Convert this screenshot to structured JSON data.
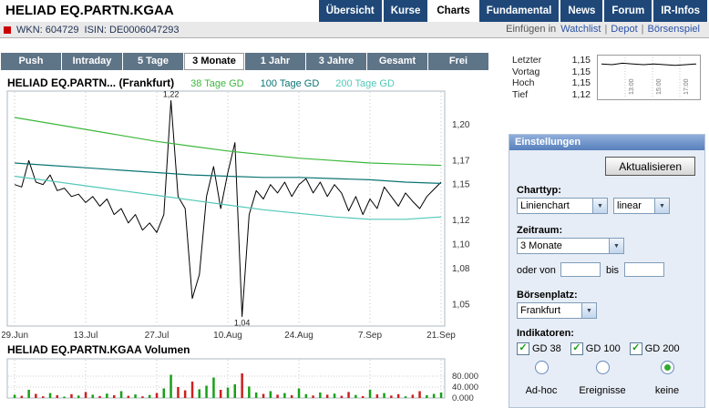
{
  "header": {
    "title": "HELIAD EQ.PARTN.KGAA",
    "tabs": [
      {
        "label": "Übersicht",
        "active": false
      },
      {
        "label": "Kurse",
        "active": false
      },
      {
        "label": "Charts",
        "active": true
      },
      {
        "label": "Fundamental",
        "active": false
      },
      {
        "label": "News",
        "active": false
      },
      {
        "label": "Forum",
        "active": false
      },
      {
        "label": "IR-Infos",
        "active": false
      }
    ]
  },
  "subheader": {
    "wkn_label": "WKN:",
    "wkn_value": "604729",
    "isin_label": "ISIN:",
    "isin_value": "DE0006047293",
    "links_prefix": "Einfügen in",
    "links": [
      "Watchlist",
      "Depot",
      "Börsenspiel"
    ]
  },
  "period_tabs": [
    {
      "label": "Push",
      "active": false
    },
    {
      "label": "Intraday",
      "active": false
    },
    {
      "label": "5 Tage",
      "active": false
    },
    {
      "label": "3 Monate",
      "active": true
    },
    {
      "label": "1 Jahr",
      "active": false
    },
    {
      "label": "3 Jahre",
      "active": false
    },
    {
      "label": "Gesamt",
      "active": false
    },
    {
      "label": "Frei",
      "active": false
    }
  ],
  "quote": {
    "rows": [
      {
        "label": "Letzter",
        "value": "1,15"
      },
      {
        "label": "Vortag",
        "value": "1,15"
      },
      {
        "label": "Hoch",
        "value": "1,15"
      },
      {
        "label": "Tief",
        "value": "1,12"
      }
    ],
    "times": [
      "13:00",
      "15:00",
      "17:00"
    ],
    "spark": [
      1.151,
      1.15,
      1.152,
      1.151,
      1.15,
      1.151,
      1.15,
      1.149,
      1.15,
      1.151
    ]
  },
  "settings": {
    "title": "Einstellungen",
    "refresh_button": "Aktualisieren",
    "charttype_label": "Charttyp:",
    "charttype_value": "Linienchart",
    "scale_value": "linear",
    "zeitraum_label": "Zeitraum:",
    "zeitraum_value": "3 Monate",
    "oder_von_label": "oder von",
    "bis_label": "bis",
    "von_value": "",
    "bis_value": "",
    "boersenplatz_label": "Börsenplatz:",
    "boersenplatz_value": "Frankfurt",
    "indikatoren_label": "Indikatoren:",
    "checkboxes": [
      {
        "label": "GD 38",
        "checked": true
      },
      {
        "label": "GD 100",
        "checked": true
      },
      {
        "label": "GD 200",
        "checked": true
      }
    ],
    "radios": [
      {
        "label": "Ad-hoc",
        "selected": false
      },
      {
        "label": "Ereignisse",
        "selected": false
      },
      {
        "label": "keine",
        "selected": true
      }
    ]
  },
  "chart_data": [
    {
      "type": "line",
      "title": "HELIAD EQ.PARTN... (Frankfurt)",
      "legend": [
        {
          "label": "38 Tage GD",
          "color": "#3cb83c"
        },
        {
          "label": "100 Tage GD",
          "color": "#0b7474"
        },
        {
          "label": "200 Tage GD",
          "color": "#52c8b8"
        }
      ],
      "x_tick_labels": [
        "29.Jun",
        "13.Jul",
        "27.Jul",
        "10.Aug",
        "24.Aug",
        "7.Sep",
        "21.Sep"
      ],
      "x_tick_positions": [
        0,
        10,
        20,
        30,
        40,
        50,
        60
      ],
      "y_ticks": [
        {
          "value": 1.2,
          "label": "1,20"
        },
        {
          "value": 1.17,
          "label": "1,17"
        },
        {
          "value": 1.15,
          "label": "1,15"
        },
        {
          "value": 1.12,
          "label": "1,12"
        },
        {
          "value": 1.1,
          "label": "1,10"
        },
        {
          "value": 1.08,
          "label": "1,08"
        },
        {
          "value": 1.05,
          "label": "1,05"
        }
      ],
      "ylim": [
        1.032,
        1.228
      ],
      "series": [
        {
          "name": "Kurs",
          "color": "#000000",
          "values": [
            1.15,
            1.148,
            1.17,
            1.152,
            1.15,
            1.158,
            1.145,
            1.147,
            1.14,
            1.142,
            1.135,
            1.14,
            1.132,
            1.138,
            1.125,
            1.13,
            1.118,
            1.125,
            1.112,
            1.118,
            1.11,
            1.125,
            1.22,
            1.14,
            1.13,
            1.055,
            1.075,
            1.14,
            1.165,
            1.13,
            1.16,
            1.185,
            1.04,
            1.125,
            1.145,
            1.138,
            1.15,
            1.143,
            1.152,
            1.14,
            1.15,
            1.155,
            1.143,
            1.152,
            1.14,
            1.15,
            1.143,
            1.128,
            1.14,
            1.125,
            1.138,
            1.13,
            1.148,
            1.14,
            1.132,
            1.143,
            1.136,
            1.13,
            1.14,
            1.146,
            1.152
          ]
        },
        {
          "name": "38 Tage GD",
          "color": "#3cb83c",
          "x": [
            0,
            5,
            10,
            15,
            20,
            25,
            30,
            35,
            40,
            45,
            50,
            55,
            60
          ],
          "values": [
            1.206,
            1.201,
            1.196,
            1.191,
            1.186,
            1.182,
            1.178,
            1.175,
            1.172,
            1.17,
            1.168,
            1.167,
            1.166
          ]
        },
        {
          "name": "100 Tage GD",
          "color": "#0b7474",
          "x": [
            0,
            5,
            10,
            15,
            20,
            25,
            30,
            35,
            40,
            45,
            50,
            55,
            60
          ],
          "values": [
            1.168,
            1.166,
            1.164,
            1.162,
            1.16,
            1.158,
            1.157,
            1.156,
            1.156,
            1.155,
            1.154,
            1.152,
            1.151
          ]
        },
        {
          "name": "200 Tage GD",
          "color": "#52c8b8",
          "x": [
            0,
            5,
            10,
            15,
            20,
            25,
            30,
            35,
            40,
            45,
            50,
            55,
            60
          ],
          "values": [
            1.157,
            1.153,
            1.149,
            1.145,
            1.141,
            1.137,
            1.133,
            1.129,
            1.126,
            1.123,
            1.121,
            1.121,
            1.123
          ]
        }
      ],
      "annotations": [
        {
          "x": 22,
          "value": 1.22,
          "label": "1,22",
          "position": "above"
        },
        {
          "x": 32,
          "value": 1.04,
          "label": "1,04",
          "position": "below"
        }
      ]
    },
    {
      "type": "bar",
      "title": "HELIAD EQ.PARTN.KGAA Volumen",
      "y_ticks": [
        {
          "value": 80000,
          "label": "80.000"
        },
        {
          "value": 40000,
          "label": "40.000"
        },
        {
          "value": 0,
          "label": "0.000"
        }
      ],
      "up_color": "#18a018",
      "down_color": "#cc2020",
      "values": [
        12000,
        8000,
        30000,
        15000,
        6000,
        18000,
        10000,
        5000,
        14000,
        9000,
        22000,
        12000,
        7000,
        16000,
        10000,
        25000,
        8000,
        13000,
        6000,
        11000,
        18000,
        35000,
        85000,
        40000,
        28000,
        60000,
        32000,
        45000,
        75000,
        30000,
        38000,
        50000,
        90000,
        42000,
        20000,
        15000,
        25000,
        12000,
        18000,
        10000,
        35000,
        14000,
        9000,
        20000,
        12000,
        16000,
        8000,
        22000,
        11000,
        7000,
        30000,
        13000,
        18000,
        9000,
        14000,
        6000,
        12000,
        25000,
        10000,
        15000,
        20000
      ]
    }
  ]
}
